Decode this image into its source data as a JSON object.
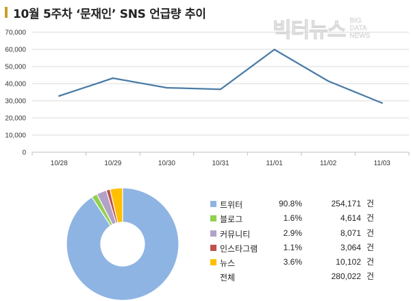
{
  "title": "10월 5주차 ‘문재인’ SNS 언급량 추이",
  "watermark": {
    "main": "빅터뉴스",
    "small": [
      "BIG",
      "DATA",
      "NEWS"
    ]
  },
  "colors": {
    "title_mark": "#c8a02a",
    "line": "#4a7ba6",
    "grid": "#d9d9d9",
    "axis": "#bfbfbf"
  },
  "chart_data": [
    {
      "type": "line",
      "categories": [
        "10/28",
        "10/29",
        "10/30",
        "10/31",
        "11/01",
        "11/02",
        "11/03"
      ],
      "series": [
        {
          "values": [
            32800,
            43200,
            37600,
            36700,
            59900,
            41500,
            28700
          ]
        }
      ],
      "ylim": [
        0,
        70000
      ],
      "yticks": [
        "0",
        "10,000",
        "20,000",
        "30,000",
        "40,000",
        "50,000",
        "60,000",
        "70,000"
      ],
      "grid": true,
      "xlabel": "",
      "ylabel": "",
      "title": ""
    },
    {
      "type": "pie",
      "donut": true,
      "labels": [
        "트위터",
        "블로그",
        "커뮤니티",
        "인스타그램",
        "뉴스"
      ],
      "percentages": [
        90.8,
        1.6,
        2.9,
        1.1,
        3.6
      ],
      "values": [
        254171,
        4614,
        8071,
        3064,
        10102
      ],
      "colors": [
        "#8eb4e3",
        "#92d050",
        "#b3a2c7",
        "#c0504d",
        "#ffc000"
      ],
      "legend": {
        "rows": [
          {
            "name": "트위터",
            "pct": "90.8%",
            "count": "254,171",
            "unit": "건",
            "color": "#8eb4e3"
          },
          {
            "name": "블로그",
            "pct": "1.6%",
            "count": "4,614",
            "unit": "건",
            "color": "#92d050"
          },
          {
            "name": "커뮤니티",
            "pct": "2.9%",
            "count": "8,071",
            "unit": "건",
            "color": "#b3a2c7"
          },
          {
            "name": "인스타그램",
            "pct": "1.1%",
            "count": "3,064",
            "unit": "건",
            "color": "#c0504d"
          },
          {
            "name": "뉴스",
            "pct": "3.6%",
            "count": "10,102",
            "unit": "건",
            "color": "#ffc000"
          },
          {
            "name": "전체",
            "pct": "",
            "count": "280,022",
            "unit": "건",
            "color": ""
          }
        ]
      }
    }
  ]
}
